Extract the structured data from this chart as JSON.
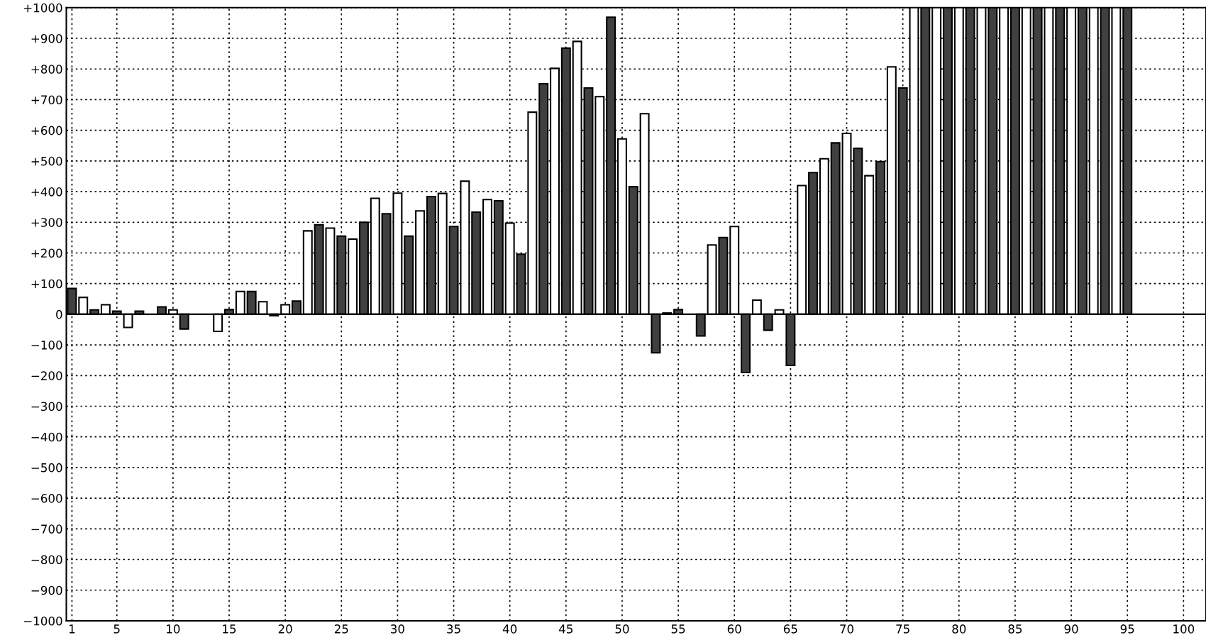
{
  "chart_data": {
    "type": "bar",
    "x": [
      1,
      2,
      3,
      4,
      5,
      6,
      7,
      8,
      9,
      10,
      11,
      12,
      13,
      14,
      15,
      16,
      17,
      18,
      19,
      20,
      21,
      22,
      23,
      24,
      25,
      26,
      27,
      28,
      29,
      30,
      31,
      32,
      33,
      34,
      35,
      36,
      37,
      38,
      39,
      40,
      41,
      42,
      43,
      44,
      45,
      46,
      47,
      48,
      49,
      50,
      51,
      52,
      53,
      54,
      55,
      56,
      57,
      58,
      59,
      60,
      61,
      62,
      63,
      64,
      65,
      66,
      67,
      68,
      69,
      70,
      71,
      72,
      73,
      74,
      75,
      76,
      77,
      78,
      79,
      80,
      81,
      82,
      83,
      84,
      85,
      86,
      87,
      88,
      89,
      90,
      91,
      92,
      93,
      94,
      95
    ],
    "values": [
      84,
      55,
      14,
      31,
      10,
      -43,
      10,
      null,
      24,
      14,
      -48,
      null,
      null,
      -56,
      15,
      74,
      74,
      41,
      -5,
      31,
      43,
      272,
      292,
      281,
      255,
      245,
      300,
      378,
      328,
      395,
      255,
      337,
      384,
      394,
      286,
      434,
      333,
      374,
      370,
      297,
      196,
      659,
      752,
      802,
      868,
      890,
      738,
      710,
      969,
      572,
      416,
      654,
      -126,
      4,
      15,
      null,
      -71,
      226,
      250,
      286,
      -190,
      46,
      -52,
      14,
      -167,
      420,
      462,
      507,
      559,
      590,
      541,
      452,
      498,
      807,
      738,
      1000,
      1000,
      1000,
      1000,
      1000,
      1000,
      1000,
      1000,
      1000,
      1000,
      1000,
      1000,
      1000,
      1000,
      1000,
      1000,
      1000,
      1000,
      1000,
      1000
    ],
    "colors": [
      "#404040",
      "#ffffff",
      "#404040",
      "#ffffff",
      "#404040",
      "#ffffff",
      "#404040",
      "#ffffff",
      "#404040",
      "#ffffff",
      "#404040",
      "#ffffff",
      "#404040",
      "#ffffff",
      "#404040",
      "#ffffff",
      "#404040",
      "#ffffff",
      "#404040",
      "#ffffff",
      "#404040",
      "#ffffff",
      "#404040",
      "#ffffff",
      "#404040",
      "#ffffff",
      "#404040",
      "#ffffff",
      "#404040",
      "#ffffff",
      "#404040",
      "#ffffff",
      "#404040",
      "#ffffff",
      "#404040",
      "#ffffff",
      "#404040",
      "#ffffff",
      "#404040",
      "#ffffff",
      "#404040",
      "#ffffff",
      "#404040",
      "#ffffff",
      "#404040",
      "#ffffff",
      "#404040",
      "#ffffff",
      "#404040",
      "#ffffff",
      "#404040",
      "#ffffff",
      "#404040",
      "#ffffff",
      "#404040",
      "#ffffff",
      "#404040",
      "#ffffff",
      "#404040",
      "#ffffff",
      "#404040",
      "#ffffff",
      "#404040",
      "#ffffff",
      "#404040",
      "#ffffff",
      "#404040",
      "#ffffff",
      "#404040",
      "#ffffff",
      "#404040",
      "#ffffff",
      "#404040",
      "#ffffff",
      "#404040",
      "#ffffff",
      "#404040",
      "#ffffff",
      "#404040",
      "#ffffff",
      "#404040",
      "#ffffff",
      "#404040",
      "#ffffff",
      "#404040",
      "#ffffff",
      "#404040",
      "#ffffff",
      "#404040",
      "#ffffff",
      "#404040",
      "#ffffff",
      "#404040",
      "#ffffff",
      "#404040"
    ],
    "xlim": [
      0.5,
      102
    ],
    "xticks": [
      1,
      5,
      10,
      15,
      20,
      25,
      30,
      35,
      40,
      45,
      50,
      55,
      60,
      65,
      70,
      75,
      80,
      85,
      90,
      95,
      100
    ],
    "ylim": [
      -1000,
      1000
    ],
    "yticks": [
      {
        "value": 1000,
        "label": "+1000"
      },
      {
        "value": 900,
        "label": "+900"
      },
      {
        "value": 800,
        "label": "+800"
      },
      {
        "value": 700,
        "label": "+700"
      },
      {
        "value": 600,
        "label": "+600"
      },
      {
        "value": 500,
        "label": "+500"
      },
      {
        "value": 400,
        "label": "+400"
      },
      {
        "value": 300,
        "label": "+300"
      },
      {
        "value": 200,
        "label": "+200"
      },
      {
        "value": 100,
        "label": "+100"
      },
      0,
      {
        "value": -100,
        "label": "−100"
      },
      {
        "value": -200,
        "label": "−200"
      },
      {
        "value": -300,
        "label": "−300"
      },
      {
        "value": -400,
        "label": "−400"
      },
      {
        "value": -500,
        "label": "−500"
      },
      {
        "value": -600,
        "label": "−600"
      },
      {
        "value": -700,
        "label": "−700"
      },
      {
        "value": -800,
        "label": "−800"
      },
      {
        "value": -900,
        "label": "−900"
      },
      {
        "value": -1000,
        "label": "−1000"
      }
    ],
    "ref_lines": [
      {
        "axis": "y",
        "value": 0,
        "color": "#000000",
        "line_style": "solid"
      }
    ],
    "grid": true,
    "legend": false
  }
}
